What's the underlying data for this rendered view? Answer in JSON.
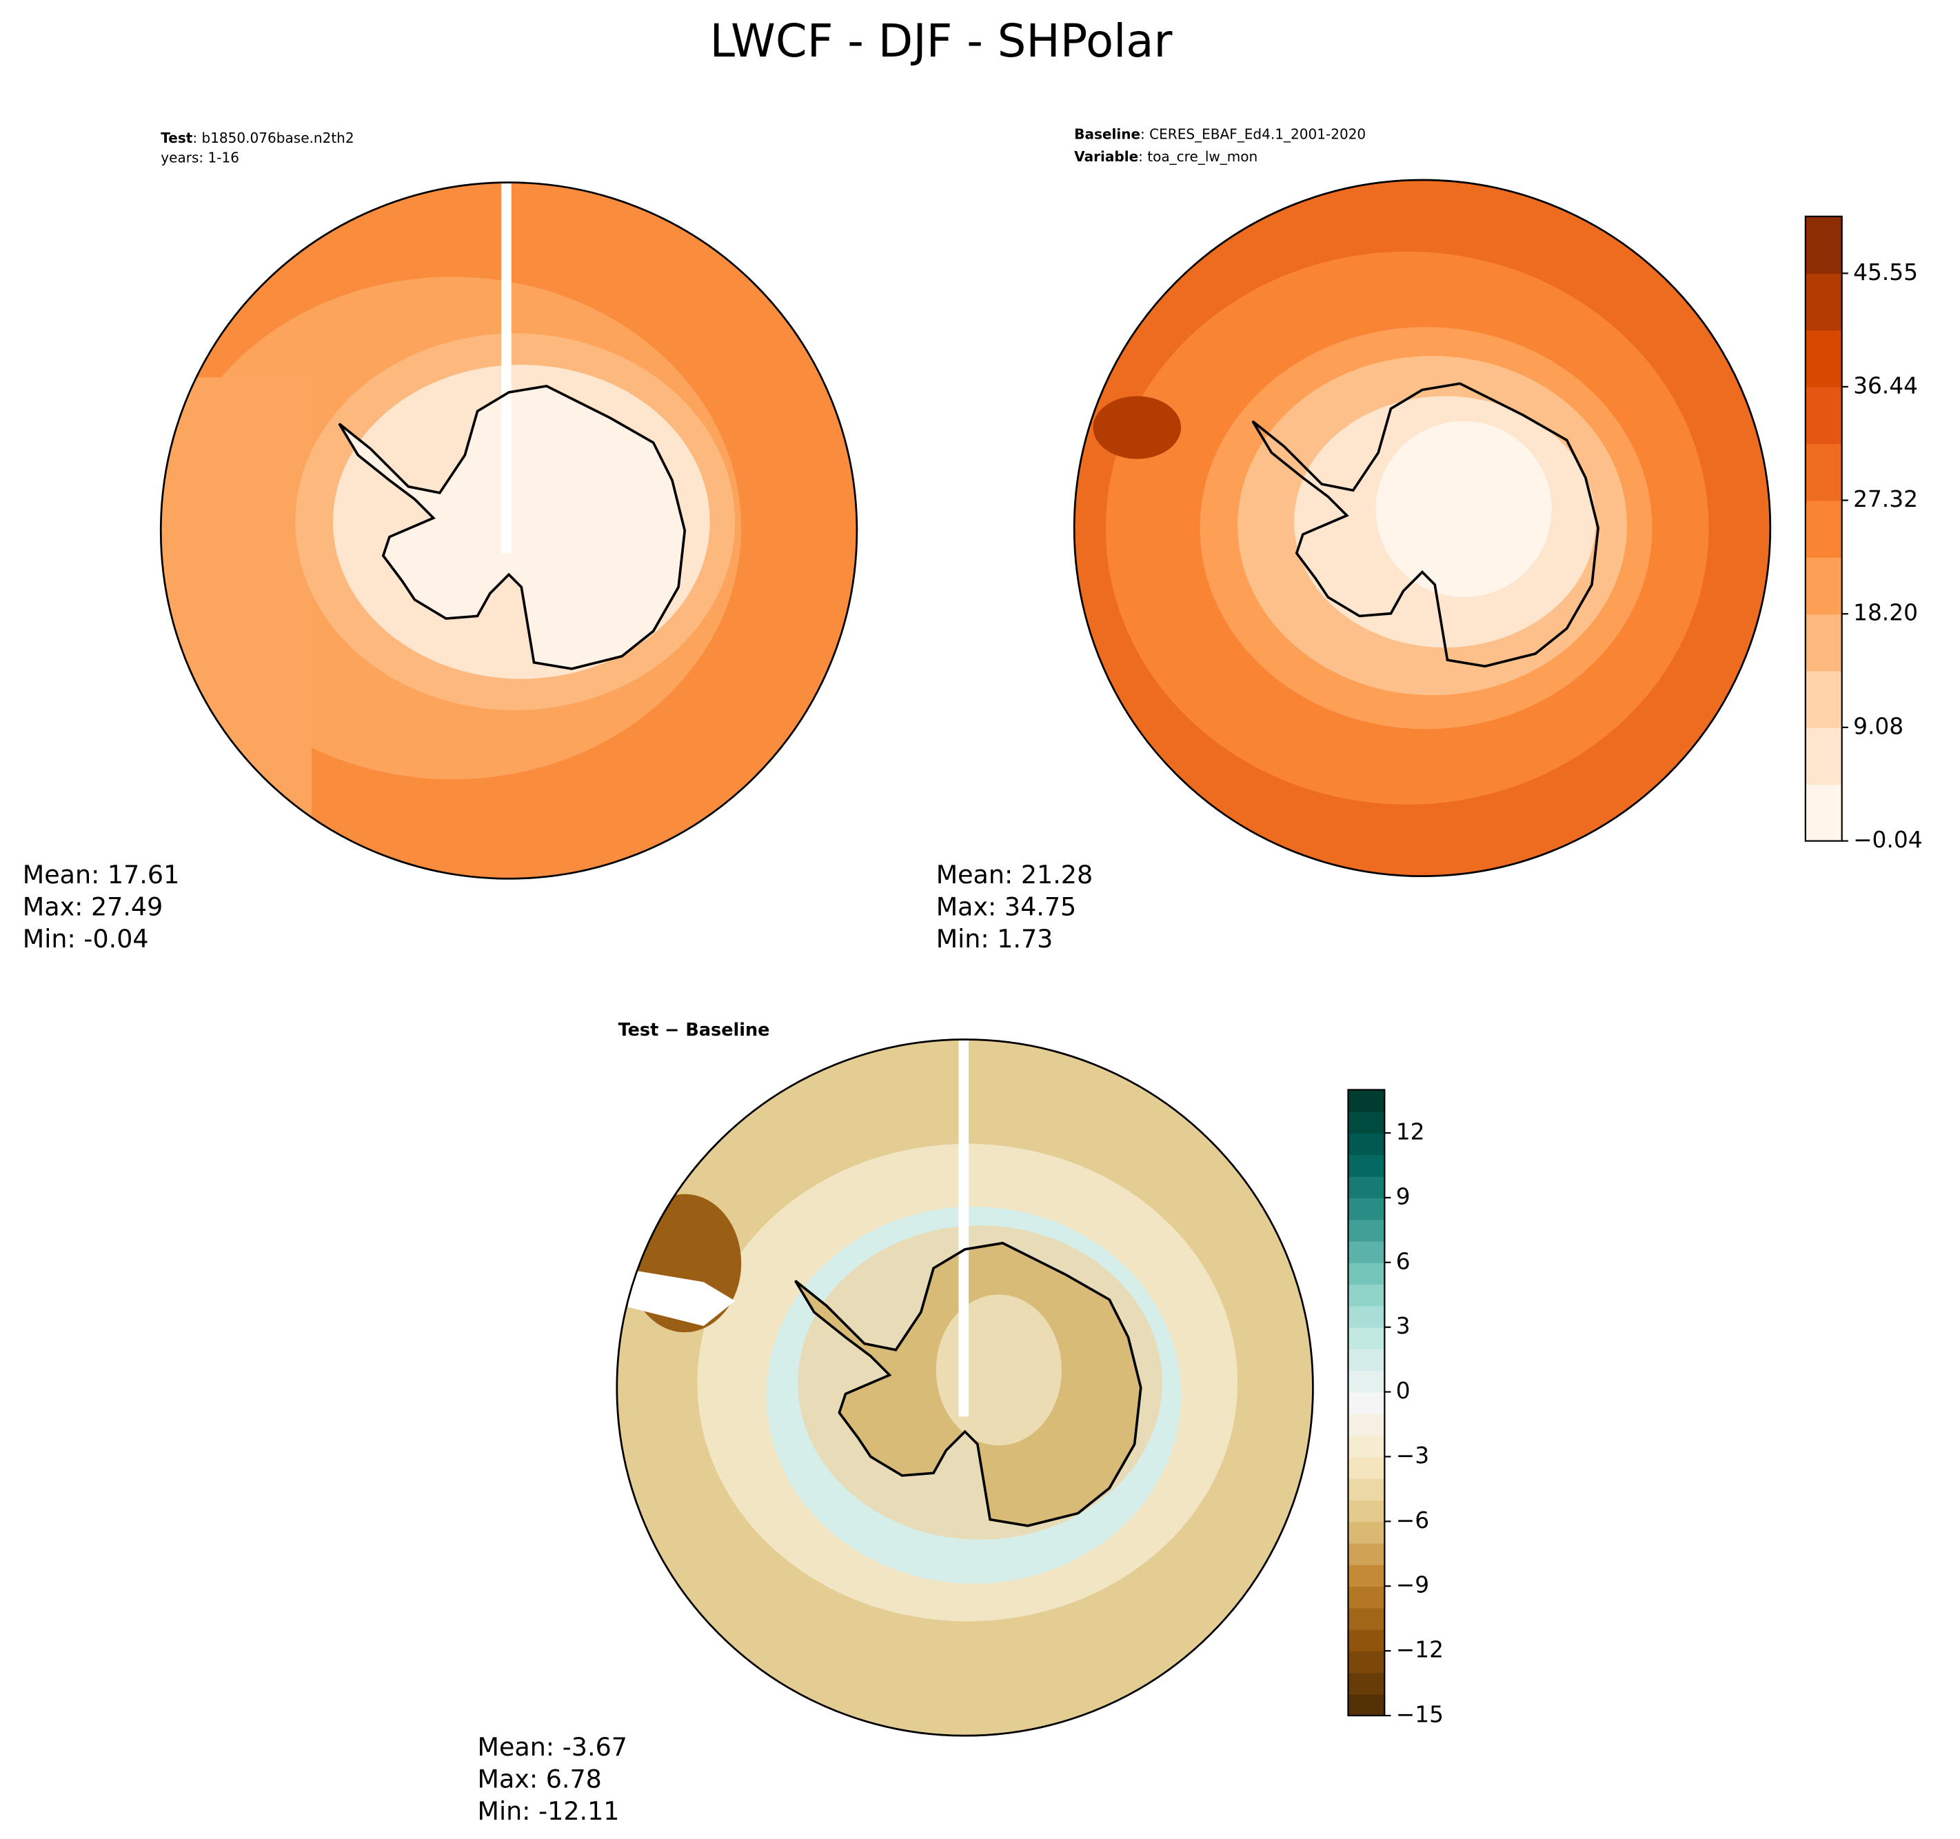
{
  "title": "LWCF - DJF - SHPolar",
  "panels": [
    {
      "label_key": "Test",
      "label_text": ": b1850.076base.n2th2",
      "subtitle": "years: 1-16",
      "stats": [
        "Mean: 17.61",
        "Max: 27.49",
        "Min: -0.04"
      ]
    },
    {
      "label_key": "Baseline",
      "label_text": ": CERES_EBAF_Ed4.1_2001-2020",
      "subtitle_key": "Variable",
      "subtitle_text": ": toa_cre_lw_mon",
      "stats": [
        "Mean: 21.28",
        "Max: 34.75",
        "Min:  1.73"
      ]
    },
    {
      "label_key": "Test − Baseline",
      "stats": [
        "Mean: -3.67",
        "Max:  6.78",
        "Min: -12.11"
      ]
    }
  ],
  "colorbars": [
    {
      "lim": [
        -0.04,
        50.12
      ],
      "ticks": [
        {
          "value": -0.04,
          "label": "−0.04"
        },
        9.08,
        {
          "value": 18.2,
          "label": "18.20"
        },
        27.32,
        36.44,
        45.55
      ],
      "colors": [
        "#fff5eb",
        "#fee6ce",
        "#fdd3a7",
        "#fdb97d",
        "#fd9f55",
        "#f88434",
        "#ee6c1f",
        "#e45713",
        "#d84801",
        "#b33c02",
        "#8c2d04"
      ],
      "bands": 11
    },
    {
      "lim": [
        -15,
        14
      ],
      "ticks": [
        {
          "value": -15,
          "label": "−15"
        },
        {
          "value": -12,
          "label": "−12"
        },
        {
          "value": -9,
          "label": "−9"
        },
        {
          "value": -6,
          "label": "−6"
        },
        {
          "value": -3,
          "label": "−3"
        },
        0,
        3,
        6,
        9,
        12
      ],
      "colors": [
        "#543005",
        "#8c510a",
        "#bf812d",
        "#dfc27d",
        "#f6e8c3",
        "#f5f5f5",
        "#c7eae5",
        "#80cdc1",
        "#35978f",
        "#01665e",
        "#003c30"
      ],
      "bands": 29
    }
  ]
}
